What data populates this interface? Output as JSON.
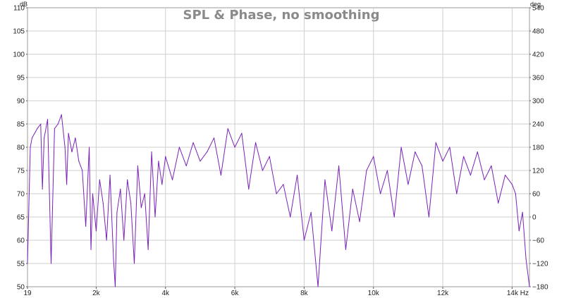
{
  "chart_data": {
    "type": "line",
    "title": "SPL & Phase, no smoothing",
    "xlabel": "Hz",
    "ylabel_left": "dB",
    "ylabel_right": "deg",
    "xlim": [
      19,
      14500
    ],
    "ylim": [
      50,
      110
    ],
    "ylim_right": [
      -180,
      540
    ],
    "x_ticks": [
      {
        "value": 19,
        "label": "19"
      },
      {
        "value": 2000,
        "label": "2k"
      },
      {
        "value": 4000,
        "label": "4k"
      },
      {
        "value": 6000,
        "label": "6k"
      },
      {
        "value": 8000,
        "label": "8k"
      },
      {
        "value": 10000,
        "label": "10k"
      },
      {
        "value": 12000,
        "label": "12k"
      },
      {
        "value": 14000,
        "label": "14k"
      }
    ],
    "y_ticks_left": [
      110,
      105,
      100,
      95,
      90,
      85,
      80,
      75,
      70,
      65,
      60,
      55,
      50
    ],
    "y_ticks_right": [
      540,
      480,
      420,
      360,
      300,
      240,
      180,
      120,
      60,
      0,
      -60,
      -120,
      -180
    ],
    "grid": true,
    "line_color": "#7a22b8",
    "series": [
      {
        "x": [
          19,
          100,
          150,
          300,
          400,
          450,
          500,
          600,
          700,
          800,
          900,
          1000,
          1100,
          1150,
          1200,
          1300,
          1400,
          1500,
          1600,
          1700,
          1800,
          1850,
          1900,
          2000,
          2100,
          2200,
          2300,
          2400,
          2500,
          2550,
          2600,
          2700,
          2800,
          2900,
          3000,
          3100,
          3200,
          3300,
          3400,
          3500,
          3600,
          3700,
          3800,
          3900,
          4000,
          4200,
          4400,
          4600,
          4800,
          5000,
          5200,
          5400,
          5600,
          5800,
          6000,
          6200,
          6400,
          6600,
          6800,
          7000,
          7200,
          7400,
          7600,
          7800,
          8000,
          8200,
          8400,
          8600,
          8800,
          9000,
          9200,
          9400,
          9600,
          9800,
          10000,
          10200,
          10400,
          10600,
          10800,
          11000,
          11200,
          11400,
          11600,
          11800,
          12000,
          12200,
          12400,
          12600,
          12800,
          13000,
          13200,
          13400,
          13600,
          13800,
          14000,
          14100,
          14200,
          14300,
          14400,
          14500
        ],
        "y": [
          55,
          80,
          82,
          84,
          85,
          71,
          82,
          86,
          55,
          84,
          85,
          87,
          80,
          72,
          83,
          79,
          82,
          77,
          75,
          63,
          80,
          58,
          70,
          62,
          73,
          68,
          60,
          74,
          56,
          50,
          66,
          71,
          60,
          73,
          68,
          55,
          76,
          67,
          70,
          58,
          79,
          65,
          77,
          72,
          78,
          73,
          80,
          76,
          81,
          77,
          79,
          82,
          74,
          84,
          80,
          83,
          71,
          81,
          75,
          78,
          70,
          72,
          65,
          74,
          60,
          66,
          50,
          73,
          62,
          76,
          58,
          71,
          64,
          75,
          78,
          70,
          75,
          65,
          80,
          72,
          79,
          76,
          65,
          81,
          77,
          80,
          70,
          78,
          74,
          79,
          73,
          76,
          68,
          74,
          72,
          70,
          62,
          66,
          56,
          50
        ]
      }
    ]
  }
}
